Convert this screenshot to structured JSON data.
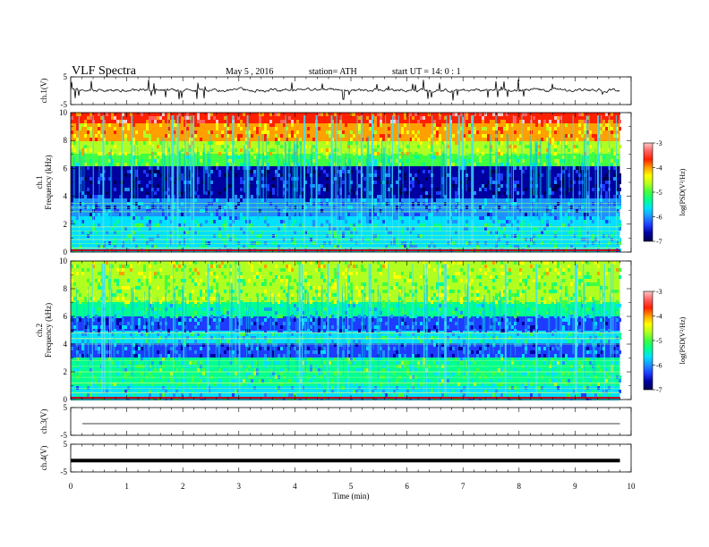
{
  "header": {
    "title": "VLF  Spectra",
    "date": "May 5  , 2016",
    "station": "station= ATH",
    "start": "start  UT  =    14: 0  : 1"
  },
  "chart_data": [
    {
      "type": "line",
      "panel": "ch1-waveform",
      "ylabel": "ch.1(V)",
      "yticks": [
        "5",
        "-5"
      ],
      "ylim": [
        -5,
        5
      ],
      "xlim": [
        0,
        10
      ],
      "data_extent_min": 9.8,
      "trace_color": "#000000"
    },
    {
      "type": "heatmap",
      "panel": "ch1-spectrogram",
      "ylabel": "ch.1\nFrequency  (kHz)",
      "yticks": [
        "10",
        "8",
        "6",
        "4",
        "2",
        "0"
      ],
      "ylim": [
        0,
        10
      ],
      "xlim": [
        0,
        10
      ],
      "colorbar": {
        "label": "log(PSD(V²/Hz)",
        "ticks": [
          "-3",
          "-4",
          "-5",
          "-6",
          "-7"
        ],
        "range": [
          -7,
          -3
        ]
      }
    },
    {
      "type": "heatmap",
      "panel": "ch2-spectrogram",
      "ylabel": "ch.2\nFrequency  (kHz)",
      "yticks": [
        "10",
        "8",
        "6",
        "4",
        "2",
        "0"
      ],
      "ylim": [
        0,
        10
      ],
      "xlim": [
        0,
        10
      ],
      "colorbar": {
        "label": "log(PSD(V²/Hz)",
        "ticks": [
          "-3",
          "-4",
          "-5",
          "-6",
          "-7"
        ],
        "range": [
          -7,
          -3
        ]
      }
    },
    {
      "type": "line",
      "panel": "ch3-waveform",
      "ylabel": "ch.3(V)",
      "yticks": [
        "5",
        "-5"
      ],
      "ylim": [
        -5,
        5
      ],
      "xlim": [
        0,
        10
      ],
      "level": -0.8
    },
    {
      "type": "line",
      "panel": "ch4-waveform",
      "ylabel": "ch.4(V)",
      "yticks": [
        "5",
        "-5"
      ],
      "ylim": [
        -5,
        5
      ],
      "xlim": [
        0,
        10
      ],
      "level": -0.9
    }
  ],
  "x_axis": {
    "label": "Time  (min)",
    "ticks": [
      "0",
      "1",
      "2",
      "3",
      "4",
      "5",
      "6",
      "7",
      "8",
      "9",
      "10"
    ]
  },
  "colormap": [
    "#000050",
    "#0000a0",
    "#1e3cff",
    "#1e90ff",
    "#00e0ff",
    "#00ff90",
    "#40ff40",
    "#b0ff20",
    "#ffff00",
    "#ffa000",
    "#ff2000",
    "#ff6060",
    "#ffc8c8"
  ]
}
